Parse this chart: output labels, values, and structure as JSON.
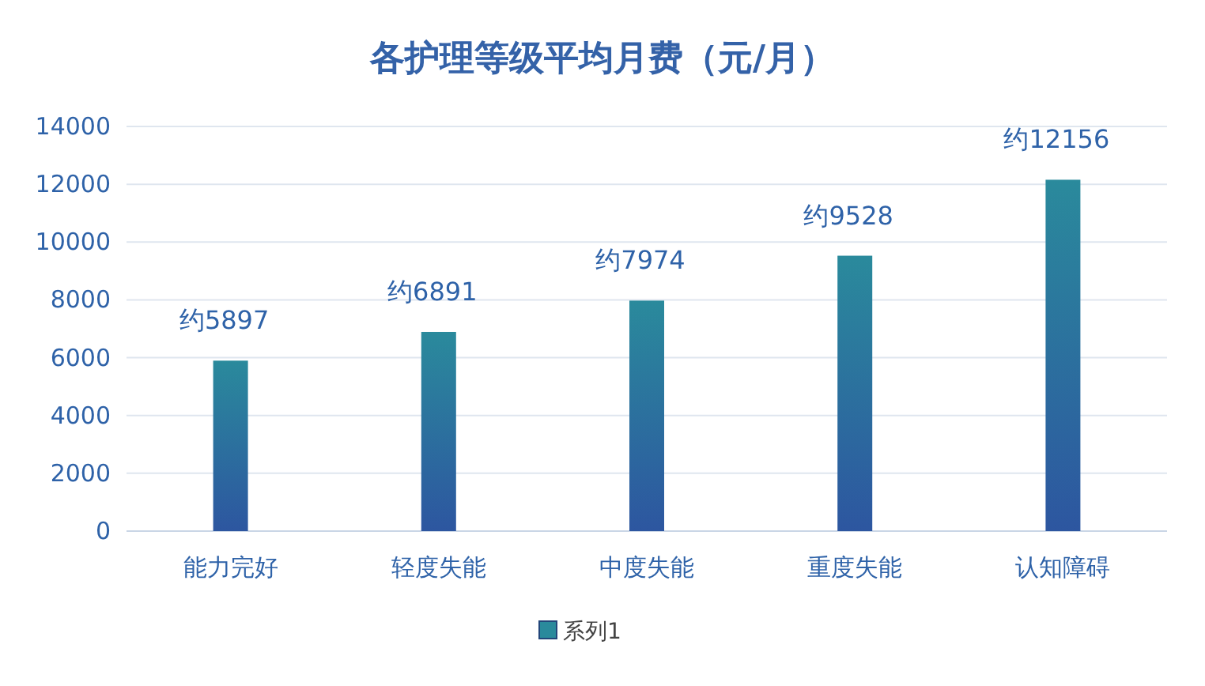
{
  "chart_data": {
    "type": "bar",
    "title": "各护理等级平均月费（元/月）",
    "categories": [
      "能力完好",
      "轻度失能",
      "中度失能",
      "重度失能",
      "认知障碍"
    ],
    "series": [
      {
        "name": "系列1",
        "color": "#2a8a9c",
        "values": [
          5897,
          6891,
          7974,
          9528,
          12156
        ],
        "value_labels": [
          "约5897",
          "约6891",
          "约7974",
          "约9528",
          "约12156"
        ]
      }
    ],
    "ylim": [
      0,
      14000
    ],
    "yticks": [
      0,
      2000,
      4000,
      6000,
      8000,
      10000,
      12000,
      14000
    ],
    "grid": "y",
    "legend": "bottom"
  }
}
